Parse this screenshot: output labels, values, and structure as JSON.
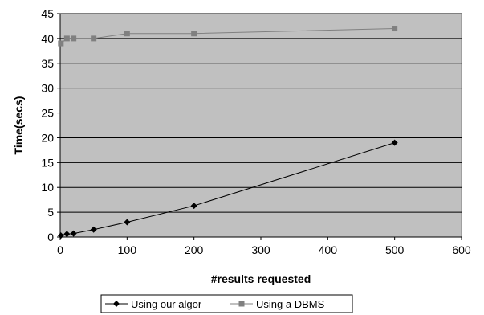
{
  "chart_data": {
    "type": "line",
    "xlabel": "#results requested",
    "ylabel": "Time(secs)",
    "xlim": [
      0,
      600
    ],
    "ylim": [
      0,
      45
    ],
    "x_ticks": [
      0,
      100,
      200,
      300,
      400,
      500,
      600
    ],
    "y_ticks": [
      0,
      5,
      10,
      15,
      20,
      25,
      30,
      35,
      40,
      45
    ],
    "grid": "horizontal",
    "legend_position": "bottom",
    "plot_background": "#c0c0c0",
    "series": [
      {
        "name": "Using our algor",
        "marker": "diamond",
        "color": "#000000",
        "x": [
          1,
          10,
          20,
          50,
          100,
          200,
          500
        ],
        "y": [
          0.3,
          0.6,
          0.7,
          1.5,
          3.0,
          6.3,
          19.0
        ]
      },
      {
        "name": "Using a DBMS",
        "marker": "square",
        "color": "#808080",
        "x": [
          1,
          10,
          20,
          50,
          100,
          200,
          500
        ],
        "y": [
          39,
          40,
          40,
          40,
          41,
          41,
          42
        ]
      }
    ]
  }
}
